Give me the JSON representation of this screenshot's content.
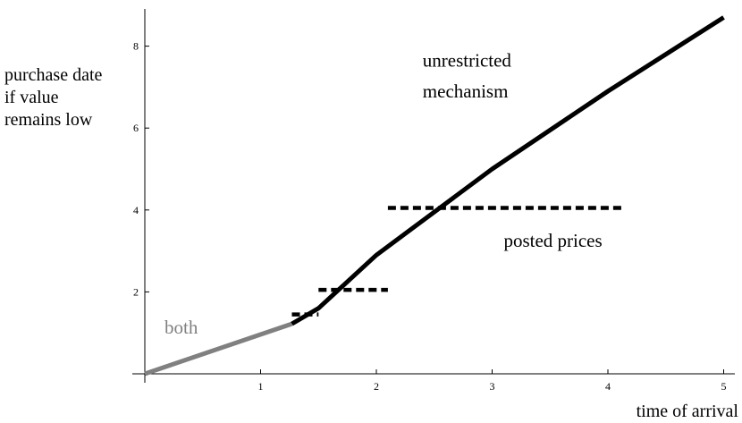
{
  "chart_data": {
    "type": "line",
    "title": "",
    "xlabel": "time of arrival",
    "ylabel_lines": [
      "purchase date",
      "if value",
      "remains low"
    ],
    "xlim": [
      0,
      5
    ],
    "ylim": [
      0,
      9
    ],
    "x_ticks": [
      1,
      2,
      3,
      4,
      5
    ],
    "y_ticks": [
      2,
      4,
      6,
      8
    ],
    "grid": false,
    "series": [
      {
        "color": "#808080",
        "style": "solid",
        "points": [
          [
            0,
            0
          ],
          [
            1.27,
            1.22
          ]
        ]
      },
      {
        "color": "#000000",
        "style": "solid",
        "points": [
          [
            1.27,
            1.22
          ],
          [
            1.5,
            1.6
          ],
          [
            2.0,
            2.9
          ],
          [
            3.0,
            5.0
          ],
          [
            4.0,
            6.9
          ],
          [
            5.0,
            8.7
          ]
        ]
      },
      {
        "color": "#000000",
        "style": "dashed",
        "points": [
          [
            1.27,
            1.45
          ],
          [
            1.5,
            1.45
          ]
        ]
      },
      {
        "color": "#000000",
        "style": "dashed",
        "points": [
          [
            1.5,
            2.05
          ],
          [
            2.1,
            2.05
          ]
        ]
      },
      {
        "color": "#000000",
        "style": "dashed",
        "points": [
          [
            2.1,
            4.05
          ],
          [
            4.12,
            4.05
          ]
        ]
      }
    ],
    "annotations": [
      {
        "text": "both",
        "x": 0.17,
        "y": 0.98,
        "color": "#808080"
      },
      {
        "text": "unrestricted",
        "x": 2.4,
        "y": 7.5,
        "color": "#000000"
      },
      {
        "text": "mechanism",
        "x": 2.4,
        "y": 6.75,
        "color": "#000000"
      },
      {
        "text": "posted prices",
        "x": 3.1,
        "y": 3.1,
        "color": "#000000"
      }
    ]
  }
}
